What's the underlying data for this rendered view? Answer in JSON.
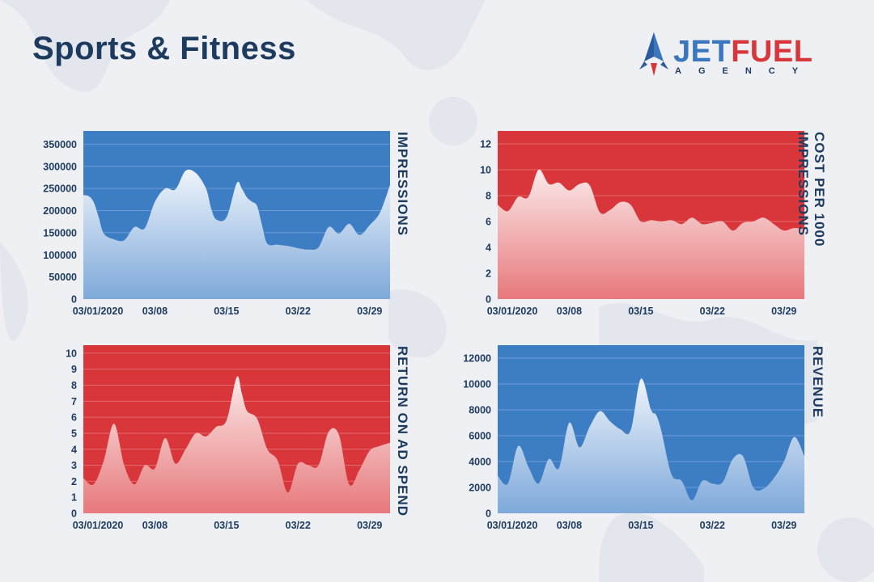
{
  "page": {
    "title": "Sports & Fitness",
    "logo": {
      "word_jet": "JET",
      "word_fuel": "FUEL",
      "subtitle": "AGENCY",
      "icon": "rocket-icon"
    },
    "colors": {
      "blue": "#3d7dc4",
      "red": "#d8363b",
      "navy": "#1d3a5f",
      "background": "#eef0f4"
    }
  },
  "chart_data": [
    {
      "type": "area",
      "ylabel": "IMPRESSIONS",
      "color": "#3d7dc4",
      "ylim": [
        0,
        380000
      ],
      "yticks": [
        0,
        50000,
        100000,
        150000,
        200000,
        250000,
        300000,
        350000
      ],
      "xticks": [
        {
          "x": 0,
          "label": "03/01/2020"
        },
        {
          "x": 7,
          "label": "03/08"
        },
        {
          "x": 14,
          "label": "03/15"
        },
        {
          "x": 21,
          "label": "03/22"
        },
        {
          "x": 28,
          "label": "03/29"
        }
      ],
      "xrange": [
        0,
        30
      ],
      "x": [
        0,
        0.5,
        1,
        1.5,
        2,
        3,
        4,
        5,
        6,
        7,
        8,
        9,
        10,
        11,
        12,
        12.5,
        13,
        14,
        15,
        15.5,
        16,
        16.5,
        17,
        17.5,
        18,
        19,
        20,
        21,
        22,
        23,
        24,
        25,
        26,
        27,
        28,
        29,
        30
      ],
      "values": [
        235000,
        233000,
        220000,
        185000,
        148000,
        135000,
        133000,
        163000,
        160000,
        220000,
        250000,
        248000,
        290000,
        285000,
        250000,
        205000,
        180000,
        185000,
        262000,
        250000,
        230000,
        220000,
        210000,
        165000,
        125000,
        123000,
        120000,
        115000,
        112000,
        117000,
        163000,
        148000,
        170000,
        145000,
        167000,
        195000,
        258000
      ]
    },
    {
      "type": "area",
      "ylabel": "COST PER 1000 IMPRESSIONS",
      "color": "#d8363b",
      "ylim": [
        0,
        13
      ],
      "yticks": [
        0,
        2,
        4,
        6,
        8,
        10,
        12
      ],
      "xticks": [
        {
          "x": 0,
          "label": "03/01/2020"
        },
        {
          "x": 7,
          "label": "03/08"
        },
        {
          "x": 14,
          "label": "03/15"
        },
        {
          "x": 21,
          "label": "03/22"
        },
        {
          "x": 28,
          "label": "03/29"
        }
      ],
      "xrange": [
        0,
        30
      ],
      "x": [
        0,
        1,
        2,
        3,
        4,
        5,
        6,
        7,
        8,
        9,
        10,
        11,
        12,
        13,
        14,
        15,
        16,
        17,
        18,
        19,
        20,
        21,
        22,
        23,
        24,
        25,
        26,
        27,
        28,
        29,
        30
      ],
      "values": [
        7.3,
        6.8,
        7.9,
        7.9,
        10.0,
        8.9,
        9.0,
        8.4,
        8.9,
        8.8,
        6.7,
        6.9,
        7.5,
        7.3,
        6.0,
        6.1,
        6.0,
        6.1,
        5.8,
        6.3,
        5.8,
        5.9,
        6.0,
        5.3,
        5.9,
        6.0,
        6.3,
        5.8,
        5.3,
        5.5,
        5.4
      ]
    },
    {
      "type": "area",
      "ylabel": "RETURN ON AD SPEND",
      "color": "#d8363b",
      "ylim": [
        0,
        10.5
      ],
      "yticks": [
        0,
        1,
        2,
        3,
        4,
        5,
        6,
        7,
        8,
        9,
        10
      ],
      "xticks": [
        {
          "x": 0,
          "label": "03/01/2020"
        },
        {
          "x": 7,
          "label": "03/08"
        },
        {
          "x": 14,
          "label": "03/15"
        },
        {
          "x": 21,
          "label": "03/22"
        },
        {
          "x": 28,
          "label": "03/29"
        }
      ],
      "xrange": [
        0,
        30
      ],
      "x": [
        0,
        1,
        2,
        3,
        4,
        5,
        6,
        7,
        8,
        9,
        10,
        11,
        12,
        13,
        14,
        15,
        15.5,
        16,
        17,
        18,
        19,
        20,
        21,
        22,
        23,
        24,
        25,
        26,
        27,
        28,
        29,
        30
      ],
      "values": [
        2.2,
        1.8,
        3.3,
        5.6,
        3.0,
        1.8,
        3.0,
        2.8,
        4.7,
        3.1,
        4.0,
        5.0,
        4.8,
        5.4,
        5.8,
        8.5,
        7.5,
        6.4,
        5.9,
        4.0,
        3.3,
        1.3,
        3.1,
        3.0,
        3.0,
        5.1,
        4.9,
        1.8,
        2.7,
        3.9,
        4.2,
        4.4
      ]
    },
    {
      "type": "area",
      "ylabel": "REVENUE",
      "color": "#3d7dc4",
      "ylim": [
        0,
        13000
      ],
      "yticks": [
        0,
        2000,
        4000,
        6000,
        8000,
        10000,
        12000
      ],
      "xticks": [
        {
          "x": 0,
          "label": "03/01/2020"
        },
        {
          "x": 7,
          "label": "03/08"
        },
        {
          "x": 14,
          "label": "03/15"
        },
        {
          "x": 21,
          "label": "03/22"
        },
        {
          "x": 28,
          "label": "03/29"
        }
      ],
      "xrange": [
        0,
        30
      ],
      "x": [
        0,
        1,
        2,
        3,
        4,
        5,
        6,
        7,
        8,
        9,
        10,
        11,
        12,
        13,
        14,
        15,
        15.5,
        16,
        17,
        18,
        19,
        20,
        21,
        22,
        23,
        24,
        25,
        26,
        27,
        28,
        29,
        30
      ],
      "values": [
        2900,
        2300,
        5200,
        3600,
        2300,
        4200,
        3500,
        7000,
        5100,
        6700,
        7900,
        7100,
        6500,
        6400,
        10400,
        8000,
        7600,
        6400,
        3000,
        2500,
        1000,
        2500,
        2300,
        2400,
        4200,
        4400,
        2000,
        1900,
        2700,
        4000,
        5900,
        4400
      ]
    }
  ]
}
